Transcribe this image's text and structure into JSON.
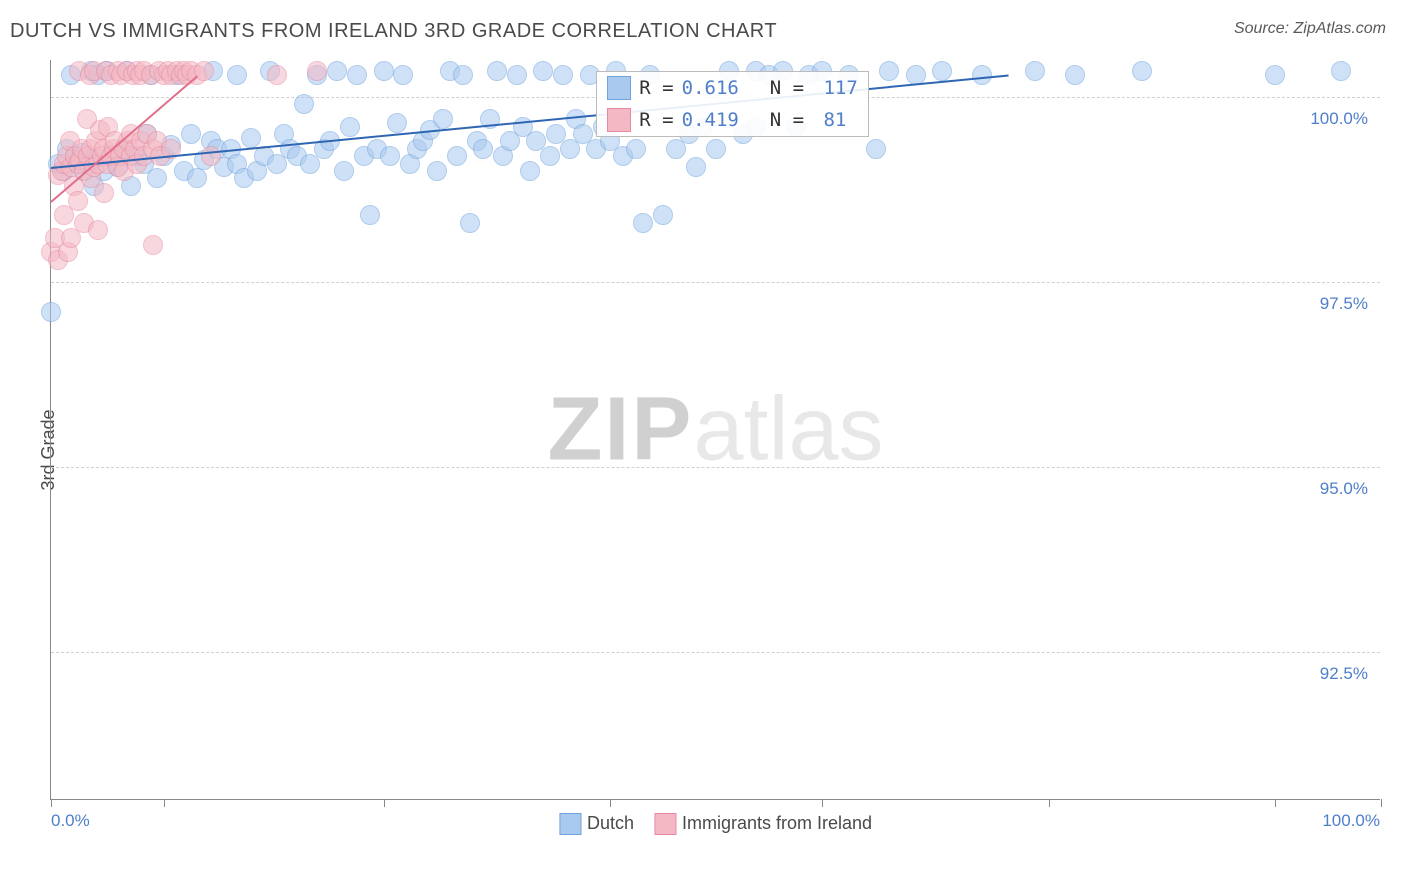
{
  "title": "DUTCH VS IMMIGRANTS FROM IRELAND 3RD GRADE CORRELATION CHART",
  "source": "Source: ZipAtlas.com",
  "ylabel": "3rd Grade",
  "watermark": {
    "bold": "ZIP",
    "light": "atlas"
  },
  "chart": {
    "type": "scatter",
    "background_color": "#ffffff",
    "grid_color": "#d0d0d0",
    "axis_color": "#888888",
    "label_color": "#4f7ecb",
    "title_fontsize": 20,
    "label_fontsize": 18,
    "tick_fontsize": 17,
    "marker_radius": 10,
    "marker_opacity": 0.55,
    "xlim": [
      0,
      100
    ],
    "ylim": [
      90.5,
      100.5
    ],
    "xtick_positions": [
      0,
      8.5,
      25,
      42,
      58,
      75,
      92,
      100
    ],
    "x_start_label": "0.0%",
    "x_end_label": "100.0%",
    "yticks": [
      {
        "v": 100.0,
        "label": "100.0%"
      },
      {
        "v": 97.5,
        "label": "97.5%"
      },
      {
        "v": 95.0,
        "label": "95.0%"
      },
      {
        "v": 92.5,
        "label": "92.5%"
      }
    ],
    "series": [
      {
        "name": "Dutch",
        "color_fill": "#a9c9ef",
        "color_stroke": "#6fa3dd",
        "trend": {
          "x1": 0,
          "y1": 99.05,
          "x2": 72,
          "y2": 100.3,
          "color": "#2f66b3",
          "width": 2
        },
        "stats": {
          "R": "0.616",
          "N": "117"
        },
        "points": [
          [
            0,
            97.1
          ],
          [
            0.5,
            99.1
          ],
          [
            1.0,
            99.0
          ],
          [
            1.2,
            99.3
          ],
          [
            1.5,
            100.3
          ],
          [
            1.8,
            99.2
          ],
          [
            2,
            99.1
          ],
          [
            2.3,
            99.25
          ],
          [
            2.5,
            99.0
          ],
          [
            3,
            99.15
          ],
          [
            3,
            100.35
          ],
          [
            3.2,
            98.8
          ],
          [
            3.5,
            100.3
          ],
          [
            4,
            99.0
          ],
          [
            4.2,
            100.35
          ],
          [
            4.5,
            99.2
          ],
          [
            5,
            99.05
          ],
          [
            5.5,
            99.3
          ],
          [
            5.7,
            100.35
          ],
          [
            6,
            98.8
          ],
          [
            6.5,
            99.2
          ],
          [
            7,
            99.1
          ],
          [
            7.2,
            99.5
          ],
          [
            7.5,
            100.3
          ],
          [
            8,
            98.9
          ],
          [
            8.5,
            99.2
          ],
          [
            9,
            99.35
          ],
          [
            9.5,
            100.3
          ],
          [
            10,
            99.0
          ],
          [
            10.5,
            99.5
          ],
          [
            11,
            98.9
          ],
          [
            11.5,
            99.15
          ],
          [
            12,
            99.4
          ],
          [
            12.2,
            100.35
          ],
          [
            12.5,
            99.3
          ],
          [
            13,
            99.05
          ],
          [
            13.5,
            99.3
          ],
          [
            14,
            99.1
          ],
          [
            14,
            100.3
          ],
          [
            14.5,
            98.9
          ],
          [
            15,
            99.45
          ],
          [
            15.5,
            99.0
          ],
          [
            16,
            99.2
          ],
          [
            16.5,
            100.35
          ],
          [
            17,
            99.1
          ],
          [
            17.5,
            99.5
          ],
          [
            18,
            99.3
          ],
          [
            18.5,
            99.2
          ],
          [
            19,
            99.9
          ],
          [
            19.5,
            99.1
          ],
          [
            20,
            100.3
          ],
          [
            20.5,
            99.3
          ],
          [
            21,
            99.4
          ],
          [
            21.5,
            100.35
          ],
          [
            22,
            99.0
          ],
          [
            22.5,
            99.6
          ],
          [
            23,
            100.3
          ],
          [
            23.5,
            99.2
          ],
          [
            24,
            98.4
          ],
          [
            24.5,
            99.3
          ],
          [
            25,
            100.35
          ],
          [
            25.5,
            99.2
          ],
          [
            26,
            99.65
          ],
          [
            26.5,
            100.3
          ],
          [
            27,
            99.1
          ],
          [
            27.5,
            99.3
          ],
          [
            28,
            99.4
          ],
          [
            28.5,
            99.55
          ],
          [
            29,
            99.0
          ],
          [
            29.5,
            99.7
          ],
          [
            30,
            100.35
          ],
          [
            30.5,
            99.2
          ],
          [
            31,
            100.3
          ],
          [
            31.5,
            98.3
          ],
          [
            32,
            99.4
          ],
          [
            32.5,
            99.3
          ],
          [
            33,
            99.7
          ],
          [
            33.5,
            100.35
          ],
          [
            34,
            99.2
          ],
          [
            34.5,
            99.4
          ],
          [
            35,
            100.3
          ],
          [
            35.5,
            99.6
          ],
          [
            36,
            99.0
          ],
          [
            36.5,
            99.4
          ],
          [
            37,
            100.35
          ],
          [
            37.5,
            99.2
          ],
          [
            38,
            99.5
          ],
          [
            38.5,
            100.3
          ],
          [
            39,
            99.3
          ],
          [
            39.5,
            99.7
          ],
          [
            40,
            99.5
          ],
          [
            40.5,
            100.3
          ],
          [
            41,
            99.3
          ],
          [
            41.5,
            99.6
          ],
          [
            42,
            99.4
          ],
          [
            42.5,
            100.35
          ],
          [
            43,
            99.2
          ],
          [
            44,
            99.3
          ],
          [
            44.5,
            98.3
          ],
          [
            45,
            100.3
          ],
          [
            46,
            98.4
          ],
          [
            47,
            99.3
          ],
          [
            48,
            99.5
          ],
          [
            48.5,
            99.05
          ],
          [
            49,
            99.6
          ],
          [
            50,
            99.3
          ],
          [
            51,
            100.35
          ],
          [
            52,
            99.5
          ],
          [
            53,
            99.6
          ],
          [
            53,
            100.35
          ],
          [
            54,
            100.3
          ],
          [
            55,
            100.35
          ],
          [
            56,
            99.6
          ],
          [
            57,
            100.3
          ],
          [
            58,
            100.35
          ],
          [
            60,
            100.3
          ],
          [
            62,
            99.3
          ],
          [
            63,
            100.35
          ],
          [
            65,
            100.3
          ],
          [
            67,
            100.35
          ],
          [
            70,
            100.3
          ],
          [
            74,
            100.35
          ],
          [
            77,
            100.3
          ],
          [
            82,
            100.35
          ],
          [
            92,
            100.3
          ],
          [
            97,
            100.35
          ]
        ]
      },
      {
        "name": "Immigrants from Ireland",
        "color_fill": "#f4b8c4",
        "color_stroke": "#e88ba0",
        "trend": {
          "x1": 0,
          "y1": 98.6,
          "x2": 11,
          "y2": 100.3,
          "color": "#e26f8a",
          "width": 2
        },
        "stats": {
          "R": "0.419",
          "N": "81"
        },
        "points": [
          [
            0,
            97.9
          ],
          [
            0.3,
            98.1
          ],
          [
            0.5,
            98.95
          ],
          [
            0.5,
            97.8
          ],
          [
            0.8,
            99.0
          ],
          [
            1,
            98.4
          ],
          [
            1,
            99.1
          ],
          [
            1.2,
            99.2
          ],
          [
            1.3,
            97.9
          ],
          [
            1.4,
            99.4
          ],
          [
            1.5,
            99.05
          ],
          [
            1.5,
            98.1
          ],
          [
            1.7,
            98.8
          ],
          [
            1.8,
            99.2
          ],
          [
            2,
            98.6
          ],
          [
            2,
            99.1
          ],
          [
            2.1,
            100.35
          ],
          [
            2.2,
            99.15
          ],
          [
            2.3,
            99.3
          ],
          [
            2.5,
            99.0
          ],
          [
            2.5,
            98.3
          ],
          [
            2.7,
            99.7
          ],
          [
            2.8,
            99.2
          ],
          [
            2.9,
            100.3
          ],
          [
            3,
            98.9
          ],
          [
            3,
            99.3
          ],
          [
            3.2,
            99.05
          ],
          [
            3.2,
            100.35
          ],
          [
            3.4,
            99.4
          ],
          [
            3.5,
            99.1
          ],
          [
            3.5,
            98.2
          ],
          [
            3.7,
            99.55
          ],
          [
            3.8,
            99.2
          ],
          [
            4,
            98.7
          ],
          [
            4,
            99.3
          ],
          [
            4.1,
            100.35
          ],
          [
            4.2,
            99.1
          ],
          [
            4.3,
            99.6
          ],
          [
            4.5,
            99.2
          ],
          [
            4.5,
            100.3
          ],
          [
            4.7,
            99.3
          ],
          [
            4.8,
            99.4
          ],
          [
            5,
            99.05
          ],
          [
            5,
            100.35
          ],
          [
            5.2,
            99.2
          ],
          [
            5.3,
            100.3
          ],
          [
            5.5,
            99.3
          ],
          [
            5.5,
            99.0
          ],
          [
            5.7,
            100.35
          ],
          [
            5.8,
            99.4
          ],
          [
            6,
            99.2
          ],
          [
            6,
            99.5
          ],
          [
            6.2,
            100.3
          ],
          [
            6.3,
            99.3
          ],
          [
            6.5,
            99.1
          ],
          [
            6.5,
            100.35
          ],
          [
            6.7,
            100.3
          ],
          [
            6.8,
            99.4
          ],
          [
            7,
            99.2
          ],
          [
            7,
            100.35
          ],
          [
            7.2,
            99.5
          ],
          [
            7.5,
            100.3
          ],
          [
            7.7,
            99.3
          ],
          [
            7.7,
            98.0
          ],
          [
            8,
            99.4
          ],
          [
            8.1,
            100.35
          ],
          [
            8.2,
            99.2
          ],
          [
            8.5,
            100.3
          ],
          [
            8.8,
            100.35
          ],
          [
            9,
            99.3
          ],
          [
            9,
            100.3
          ],
          [
            9.5,
            100.35
          ],
          [
            9.8,
            100.3
          ],
          [
            10,
            100.35
          ],
          [
            10.2,
            100.3
          ],
          [
            10.5,
            100.35
          ],
          [
            11,
            100.3
          ],
          [
            11.5,
            100.35
          ],
          [
            12,
            99.2
          ],
          [
            17,
            100.3
          ],
          [
            20,
            100.35
          ]
        ]
      }
    ],
    "stats_box": {
      "left_pct": 41,
      "top_pct": 1.5
    }
  },
  "legend": {
    "items": [
      {
        "label": "Dutch",
        "fill": "#a9c9ef",
        "stroke": "#6fa3dd"
      },
      {
        "label": "Immigrants from Ireland",
        "fill": "#f4b8c4",
        "stroke": "#e88ba0"
      }
    ]
  }
}
